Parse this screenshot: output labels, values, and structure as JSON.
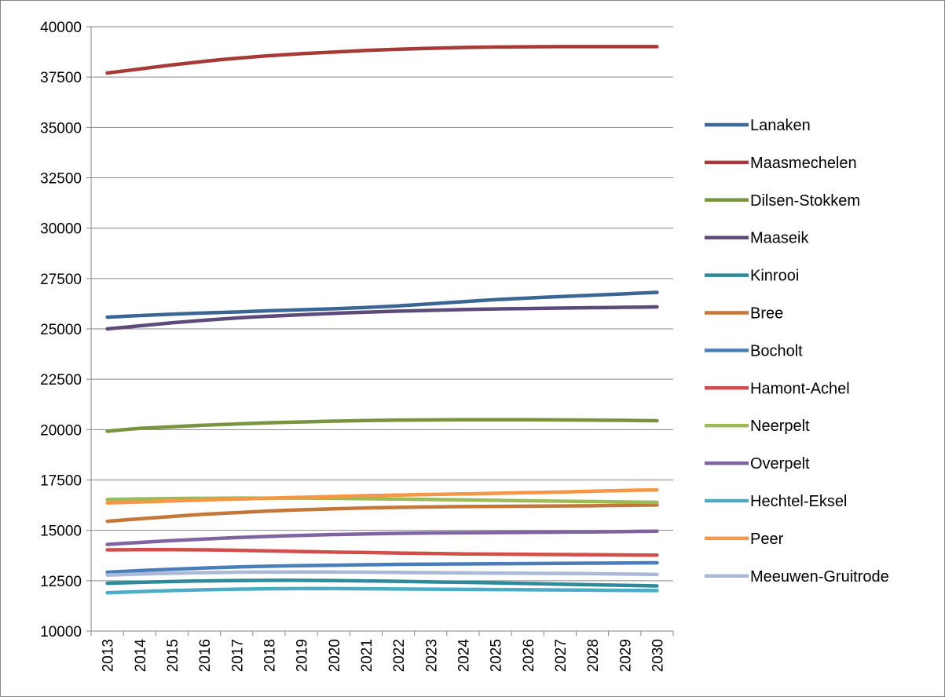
{
  "chart_data": {
    "type": "line",
    "title": "",
    "xlabel": "",
    "ylabel": "",
    "ylim": [
      10000,
      40000
    ],
    "yticks": [
      10000,
      12500,
      15000,
      17500,
      20000,
      22500,
      25000,
      27500,
      30000,
      32500,
      35000,
      37500,
      40000
    ],
    "grid": true,
    "legend_position": "right",
    "x": [
      "2013",
      "2014",
      "2015",
      "2016",
      "2017",
      "2018",
      "2019",
      "2020",
      "2021",
      "2022",
      "2023",
      "2024",
      "2025",
      "2026",
      "2027",
      "2028",
      "2029",
      "2030"
    ],
    "series": [
      {
        "name": "Lanaken",
        "color": "#3A6594",
        "values": [
          25580,
          25660,
          25730,
          25790,
          25840,
          25900,
          25950,
          26000,
          26060,
          26140,
          26240,
          26350,
          26450,
          26530,
          26600,
          26670,
          26740,
          26810
        ]
      },
      {
        "name": "Maasmechelen",
        "color": "#A53A37",
        "values": [
          37700,
          37900,
          38100,
          38280,
          38430,
          38560,
          38660,
          38740,
          38820,
          38880,
          38930,
          38970,
          38990,
          39000,
          39010,
          39010,
          39010,
          39010
        ]
      },
      {
        "name": "Dilsen-Stokkem",
        "color": "#789440",
        "values": [
          19920,
          20060,
          20140,
          20220,
          20280,
          20340,
          20380,
          20420,
          20450,
          20470,
          20480,
          20490,
          20490,
          20490,
          20480,
          20470,
          20460,
          20440
        ]
      },
      {
        "name": "Maaseik",
        "color": "#5C4A7A",
        "values": [
          25000,
          25150,
          25300,
          25430,
          25540,
          25630,
          25700,
          25770,
          25830,
          25880,
          25920,
          25960,
          25990,
          26010,
          26030,
          26050,
          26070,
          26090
        ]
      },
      {
        "name": "Kinrooi",
        "color": "#2E8A9A",
        "values": [
          12370,
          12420,
          12460,
          12490,
          12510,
          12520,
          12520,
          12510,
          12490,
          12470,
          12440,
          12420,
          12390,
          12360,
          12330,
          12300,
          12270,
          12240
        ]
      },
      {
        "name": "Bree",
        "color": "#C4773A",
        "values": [
          15450,
          15570,
          15690,
          15800,
          15880,
          15960,
          16020,
          16070,
          16110,
          16140,
          16160,
          16180,
          16190,
          16200,
          16210,
          16220,
          16240,
          16260
        ]
      },
      {
        "name": "Bocholt",
        "color": "#4A7EBB",
        "values": [
          12920,
          13000,
          13070,
          13130,
          13180,
          13220,
          13250,
          13270,
          13290,
          13310,
          13320,
          13330,
          13340,
          13350,
          13360,
          13370,
          13380,
          13390
        ]
      },
      {
        "name": "Hamont-Achel",
        "color": "#D04F4B",
        "values": [
          14030,
          14040,
          14040,
          14030,
          14010,
          13980,
          13950,
          13920,
          13900,
          13870,
          13850,
          13830,
          13820,
          13810,
          13800,
          13790,
          13780,
          13770
        ]
      },
      {
        "name": "Neerpelt",
        "color": "#9BBB59",
        "values": [
          16530,
          16560,
          16580,
          16590,
          16600,
          16600,
          16600,
          16590,
          16570,
          16550,
          16530,
          16510,
          16490,
          16470,
          16450,
          16430,
          16410,
          16390
        ]
      },
      {
        "name": "Overpelt",
        "color": "#8064A2",
        "values": [
          14300,
          14400,
          14490,
          14570,
          14640,
          14700,
          14750,
          14790,
          14820,
          14850,
          14870,
          14880,
          14890,
          14900,
          14910,
          14920,
          14940,
          14960
        ]
      },
      {
        "name": "Hechtel-Eksel",
        "color": "#4BACC6",
        "values": [
          11900,
          11960,
          12010,
          12050,
          12080,
          12100,
          12110,
          12110,
          12100,
          12090,
          12080,
          12070,
          12060,
          12050,
          12040,
          12030,
          12020,
          12010
        ]
      },
      {
        "name": "Peer",
        "color": "#F79646",
        "values": [
          16360,
          16410,
          16460,
          16510,
          16550,
          16600,
          16640,
          16680,
          16720,
          16750,
          16780,
          16810,
          16840,
          16870,
          16900,
          16940,
          16980,
          17010
        ]
      },
      {
        "name": "Meeuwen-Gruitrode",
        "color": "#A9B9D6",
        "values": [
          12780,
          12830,
          12870,
          12900,
          12920,
          12930,
          12930,
          12930,
          12920,
          12910,
          12900,
          12890,
          12880,
          12870,
          12860,
          12850,
          12830,
          12810
        ]
      }
    ]
  }
}
